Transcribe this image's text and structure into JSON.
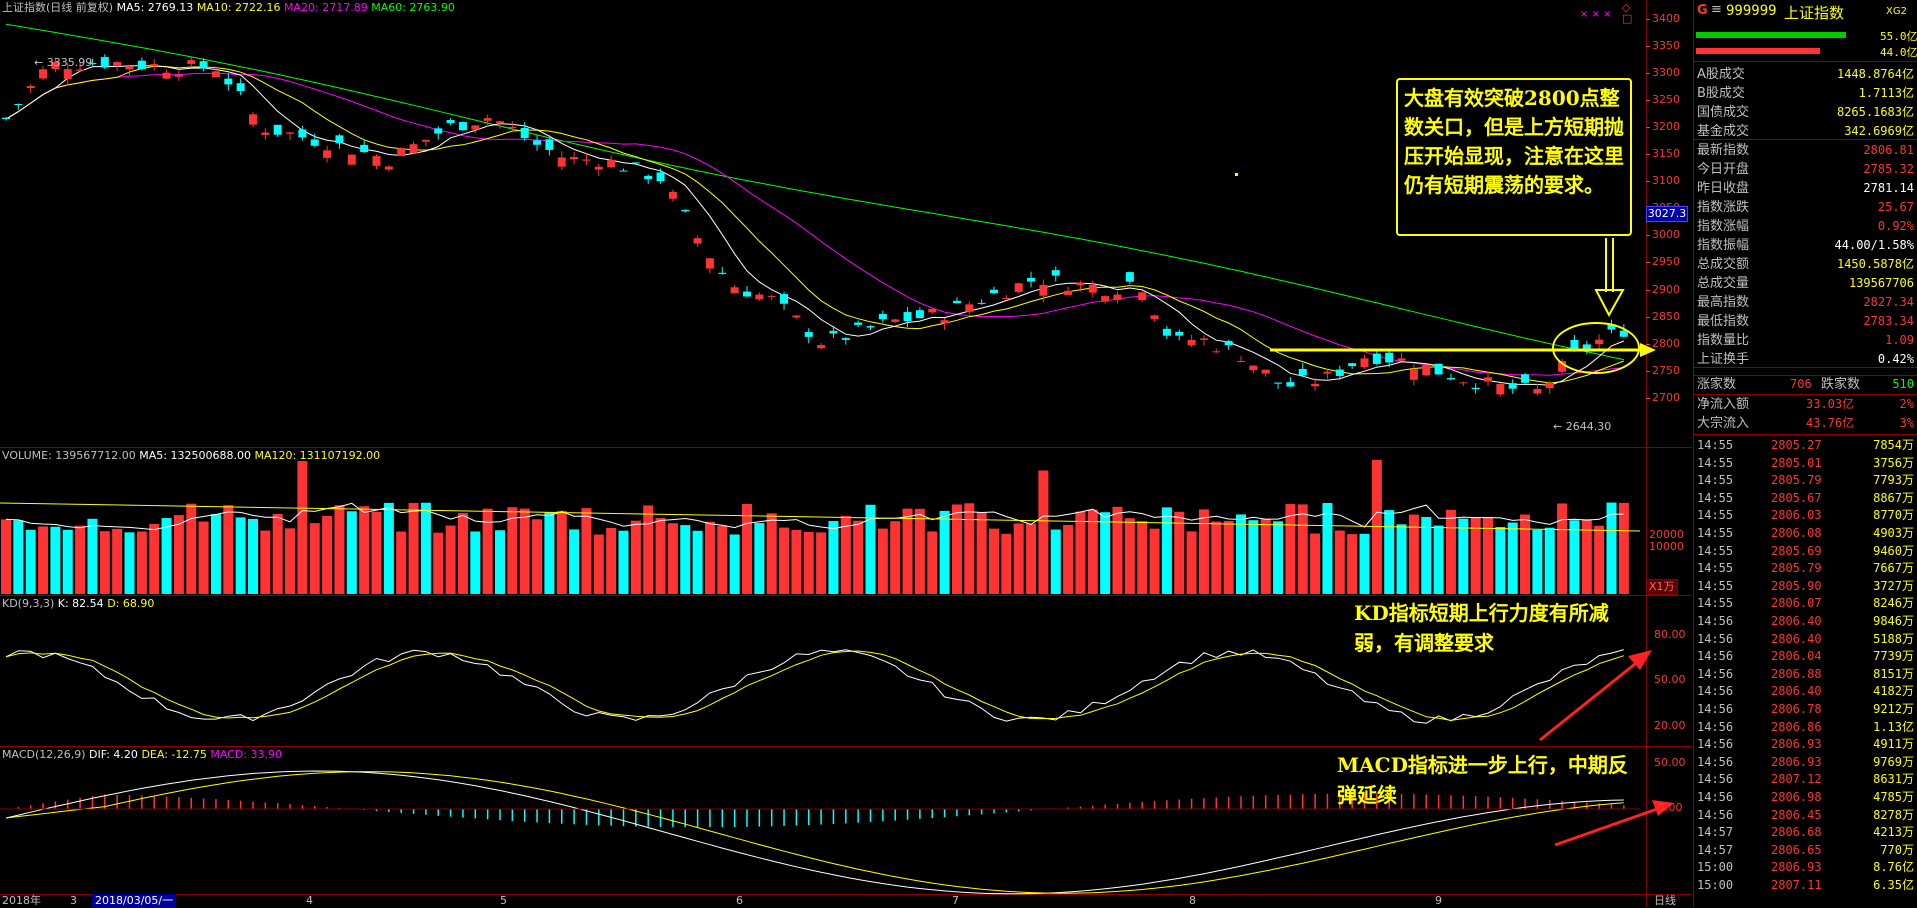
{
  "header": {
    "index_name": "上证指数(日线 前复权)",
    "ma5": "MA5: 2769.13",
    "ma10": "MA10: 2722.16",
    "ma20": "MA20: 2717.89",
    "ma60": "MA60: 2763.90",
    "mark_high": "3335.99",
    "mark_low": "2644.30",
    "current_price_tag": "3027.3"
  },
  "colors": {
    "up": "#ff3333",
    "down": "#00ffff",
    "ma5": "#ffffff",
    "ma10": "#ffff00",
    "ma20": "#ff00ff",
    "ma60": "#00ff00",
    "grid": "#8b0000",
    "annotation": "#ffff00"
  },
  "price_axis": [
    "3400",
    "3350",
    "3300",
    "3250",
    "3200",
    "3150",
    "3100",
    "3050",
    "3000",
    "2950",
    "2900",
    "2850",
    "2800",
    "2750",
    "2700"
  ],
  "volume_panel": {
    "header_volume": "VOLUME: 139567712.00",
    "header_ma5": "MA5: 132500688.00",
    "header_ma120": "MA120: 131107192.00",
    "axis": [
      "20000",
      "10000"
    ],
    "unit": "X1万"
  },
  "kd_panel": {
    "header_name": "KD(9,3,3)",
    "header_k": "K: 82.54",
    "header_d": "D: 68.90",
    "axis": [
      "80.00",
      "50.00",
      "20.00"
    ]
  },
  "macd_panel": {
    "header_name": "MACD(12,26,9)",
    "header_dif": "DIF: 4.20",
    "header_dea": "DEA: -12.75",
    "header_macd": "MACD: 33.90",
    "axis": [
      "50.00",
      "0.00"
    ]
  },
  "date_axis": {
    "year": "2018年",
    "m3": "3",
    "cursor_date": "2018/03/05/一",
    "m4": "4",
    "m5": "5",
    "m6": "6",
    "m7": "7",
    "m8": "8",
    "m9": "9",
    "period": "日线"
  },
  "annotations": {
    "main": "大盘有效突破2800点整数关口，但是上方短期抛压开始显现，注意在这里仍有短期震荡的要求。",
    "kd": "KD指标短期上行力度有所减弱，有调整要求",
    "macd": "MACD指标进一步上行，中期反弹延续"
  },
  "right_panel": {
    "code_prefix": "G",
    "code": "999999",
    "name": "上证指数",
    "tag": "XG2",
    "bar1_value": "55.0亿",
    "bar2_value": "44.0亿",
    "stats": [
      {
        "label": "A股成交",
        "value": "1448.8764亿",
        "color": "#ffff00"
      },
      {
        "label": "B股成交",
        "value": "1.7113亿",
        "color": "#ffff00"
      },
      {
        "label": "国债成交",
        "value": "8265.1683亿",
        "color": "#ffff00"
      },
      {
        "label": "基金成交",
        "value": "342.6969亿",
        "color": "#ffff00"
      },
      {
        "label": "最新指数",
        "value": "2806.81",
        "color": "#ff3333"
      },
      {
        "label": "今日开盘",
        "value": "2785.32",
        "color": "#ff3333"
      },
      {
        "label": "昨日收盘",
        "value": "2781.14",
        "color": "#ffffff"
      },
      {
        "label": "指数涨跌",
        "value": "25.67",
        "color": "#ff3333"
      },
      {
        "label": "指数涨幅",
        "value": "0.92%",
        "color": "#ff3333"
      },
      {
        "label": "指数振幅",
        "value": "44.00/1.58%",
        "color": "#ffffff"
      },
      {
        "label": "总成交额",
        "value": "1450.5878亿",
        "color": "#ffff00"
      },
      {
        "label": "总成交量",
        "value": "139567706",
        "color": "#ffff00"
      },
      {
        "label": "最高指数",
        "value": "2827.34",
        "color": "#ff3333"
      },
      {
        "label": "最低指数",
        "value": "2783.34",
        "color": "#ff3333"
      },
      {
        "label": "指数量比",
        "value": "1.09",
        "color": "#ff3333"
      },
      {
        "label": "上证换手",
        "value": "0.42%",
        "color": "#ffffff"
      }
    ],
    "rise_label": "涨家数",
    "rise_value": "706",
    "fall_label": "跌家数",
    "fall_value": "510",
    "flows": [
      {
        "label": "净流入额",
        "value": "33.03亿",
        "pct": "2%"
      },
      {
        "label": "大宗流入",
        "value": "43.76亿",
        "pct": "3%"
      }
    ],
    "ticks": [
      {
        "t": "14:55",
        "p": "2805.27",
        "v": "7854万"
      },
      {
        "t": "14:55",
        "p": "2805.01",
        "v": "3756万"
      },
      {
        "t": "14:55",
        "p": "2805.79",
        "v": "7793万"
      },
      {
        "t": "14:55",
        "p": "2805.67",
        "v": "8867万"
      },
      {
        "t": "14:55",
        "p": "2806.03",
        "v": "8770万"
      },
      {
        "t": "14:55",
        "p": "2806.08",
        "v": "4903万"
      },
      {
        "t": "14:55",
        "p": "2805.69",
        "v": "9460万"
      },
      {
        "t": "14:55",
        "p": "2805.79",
        "v": "7667万"
      },
      {
        "t": "14:55",
        "p": "2805.90",
        "v": "3727万"
      },
      {
        "t": "14:55",
        "p": "2806.07",
        "v": "8246万"
      },
      {
        "t": "14:56",
        "p": "2806.40",
        "v": "9846万"
      },
      {
        "t": "14:56",
        "p": "2806.40",
        "v": "5188万"
      },
      {
        "t": "14:56",
        "p": "2806.04",
        "v": "7739万"
      },
      {
        "t": "14:56",
        "p": "2806.88",
        "v": "8151万"
      },
      {
        "t": "14:56",
        "p": "2806.40",
        "v": "4182万"
      },
      {
        "t": "14:56",
        "p": "2806.78",
        "v": "9212万"
      },
      {
        "t": "14:56",
        "p": "2806.86",
        "v": "1.13亿"
      },
      {
        "t": "14:56",
        "p": "2806.93",
        "v": "4911万"
      },
      {
        "t": "14:56",
        "p": "2806.93",
        "v": "9769万"
      },
      {
        "t": "14:56",
        "p": "2807.12",
        "v": "8631万"
      },
      {
        "t": "14:56",
        "p": "2806.98",
        "v": "4785万"
      },
      {
        "t": "14:56",
        "p": "2806.45",
        "v": "8278万"
      },
      {
        "t": "14:57",
        "p": "2806.68",
        "v": "4213万"
      },
      {
        "t": "14:57",
        "p": "2806.65",
        "v": "770万"
      },
      {
        "t": "15:00",
        "p": "2806.93",
        "v": "8.76亿"
      },
      {
        "t": "15:00",
        "p": "2807.11",
        "v": "6.35亿"
      }
    ]
  }
}
